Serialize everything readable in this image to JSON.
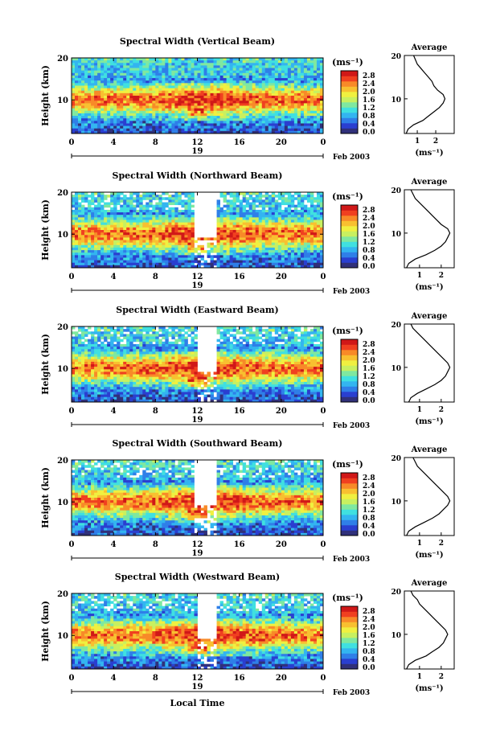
{
  "figure": {
    "xlabel": "Local Time",
    "date_label": "Feb 2003",
    "day_label": "19",
    "x_ticks": [
      "0",
      "4",
      "8",
      "12",
      "16",
      "20",
      "0"
    ],
    "y_label": "Height (km)",
    "y_ticks": [
      "20",
      "10"
    ],
    "unit_label": "(ms⁻¹)",
    "avg_title": "Average",
    "avg_xlabel": "(ms⁻¹)",
    "colorbar_ticks": [
      "2.8",
      "2.4",
      "2.0",
      "1.6",
      "1.2",
      "0.8",
      "0.4",
      "0.0"
    ],
    "colormap": [
      "#30307a",
      "#2a3fd0",
      "#2f7fe8",
      "#33b5f0",
      "#40e0e0",
      "#7fe8a0",
      "#c8f060",
      "#f0f040",
      "#f8c030",
      "#f88a28",
      "#f04020",
      "#d01818"
    ]
  },
  "chart_data": [
    {
      "type": "heatmap",
      "title": "Spectral Width (Vertical Beam)",
      "xlabel": "Local Time",
      "ylabel": "Height (km)",
      "xlim": [
        0,
        24
      ],
      "ylim": [
        2,
        20
      ],
      "clim": [
        0.0,
        3.0
      ],
      "data_gap_hours": [],
      "average_profile": {
        "title": "Average",
        "xlim": [
          0.3,
          3.0
        ],
        "x_ticks": [
          1,
          2
        ],
        "heights": [
          2,
          3,
          4,
          5,
          6,
          7,
          8,
          9,
          10,
          11,
          12,
          13,
          14,
          15,
          16,
          17,
          18,
          19,
          20
        ],
        "values": [
          0.4,
          0.5,
          0.8,
          1.3,
          1.6,
          1.9,
          2.2,
          2.4,
          2.5,
          2.4,
          2.1,
          1.9,
          1.8,
          1.6,
          1.4,
          1.2,
          1.0,
          0.9,
          0.8
        ]
      }
    },
    {
      "type": "heatmap",
      "title": "Spectral Width (Northward Beam)",
      "xlabel": "Local Time",
      "ylabel": "Height (km)",
      "xlim": [
        0,
        24
      ],
      "ylim": [
        2,
        20
      ],
      "clim": [
        0.0,
        3.0
      ],
      "data_gap_hours": [
        11.7,
        13.8
      ],
      "average_profile": {
        "title": "Average",
        "xlim": [
          0.3,
          2.6
        ],
        "x_ticks": [
          1,
          2
        ],
        "heights": [
          2,
          3,
          4,
          5,
          6,
          7,
          8,
          9,
          10,
          11,
          12,
          13,
          14,
          15,
          16,
          17,
          18,
          19,
          20
        ],
        "values": [
          0.4,
          0.5,
          0.8,
          1.3,
          1.7,
          2.0,
          2.2,
          2.3,
          2.4,
          2.3,
          2.0,
          1.8,
          1.6,
          1.4,
          1.2,
          1.0,
          0.8,
          0.7,
          0.6
        ]
      }
    },
    {
      "type": "heatmap",
      "title": "Spectral Width (Eastward Beam)",
      "xlabel": "Local Time",
      "ylabel": "Height (km)",
      "xlim": [
        0,
        24
      ],
      "ylim": [
        2,
        20
      ],
      "clim": [
        0.0,
        3.0
      ],
      "data_gap_hours": [
        11.9,
        13.9
      ],
      "average_profile": {
        "title": "Average",
        "xlim": [
          0.3,
          2.6
        ],
        "x_ticks": [
          1,
          2
        ],
        "heights": [
          2,
          3,
          4,
          5,
          6,
          7,
          8,
          9,
          10,
          11,
          12,
          13,
          14,
          15,
          16,
          17,
          18,
          19,
          20
        ],
        "values": [
          0.5,
          0.6,
          0.9,
          1.3,
          1.7,
          2.0,
          2.2,
          2.3,
          2.4,
          2.3,
          2.1,
          1.9,
          1.7,
          1.5,
          1.3,
          1.1,
          0.9,
          0.7,
          0.6
        ]
      }
    },
    {
      "type": "heatmap",
      "title": "Spectral Width (Southward Beam)",
      "xlabel": "Local Time",
      "ylabel": "Height (km)",
      "xlim": [
        0,
        24
      ],
      "ylim": [
        2,
        20
      ],
      "clim": [
        0.0,
        3.0
      ],
      "data_gap_hours": [
        11.8,
        13.9
      ],
      "average_profile": {
        "title": "Average",
        "xlim": [
          0.3,
          2.6
        ],
        "x_ticks": [
          1,
          2
        ],
        "heights": [
          2,
          3,
          4,
          5,
          6,
          7,
          8,
          9,
          10,
          11,
          12,
          13,
          14,
          15,
          16,
          17,
          18,
          19,
          20
        ],
        "values": [
          0.4,
          0.5,
          0.8,
          1.2,
          1.6,
          1.9,
          2.1,
          2.3,
          2.4,
          2.3,
          2.1,
          1.9,
          1.7,
          1.5,
          1.3,
          1.1,
          0.9,
          0.8,
          0.7
        ]
      }
    },
    {
      "type": "heatmap",
      "title": "Spectral Width (Westward Beam)",
      "xlabel": "Local Time",
      "ylabel": "Height (km)",
      "xlim": [
        0,
        24
      ],
      "ylim": [
        2,
        20
      ],
      "clim": [
        0.0,
        3.0
      ],
      "data_gap_hours": [
        12.0,
        13.8
      ],
      "average_profile": {
        "title": "Average",
        "xlim": [
          0.3,
          2.6
        ],
        "x_ticks": [
          1,
          2
        ],
        "heights": [
          2,
          3,
          4,
          5,
          6,
          7,
          8,
          9,
          10,
          11,
          12,
          13,
          14,
          15,
          16,
          17,
          18,
          19,
          20
        ],
        "values": [
          0.4,
          0.5,
          0.8,
          1.3,
          1.6,
          1.9,
          2.1,
          2.2,
          2.3,
          2.2,
          2.0,
          1.8,
          1.6,
          1.4,
          1.2,
          1.0,
          0.9,
          0.7,
          0.6
        ]
      }
    }
  ]
}
